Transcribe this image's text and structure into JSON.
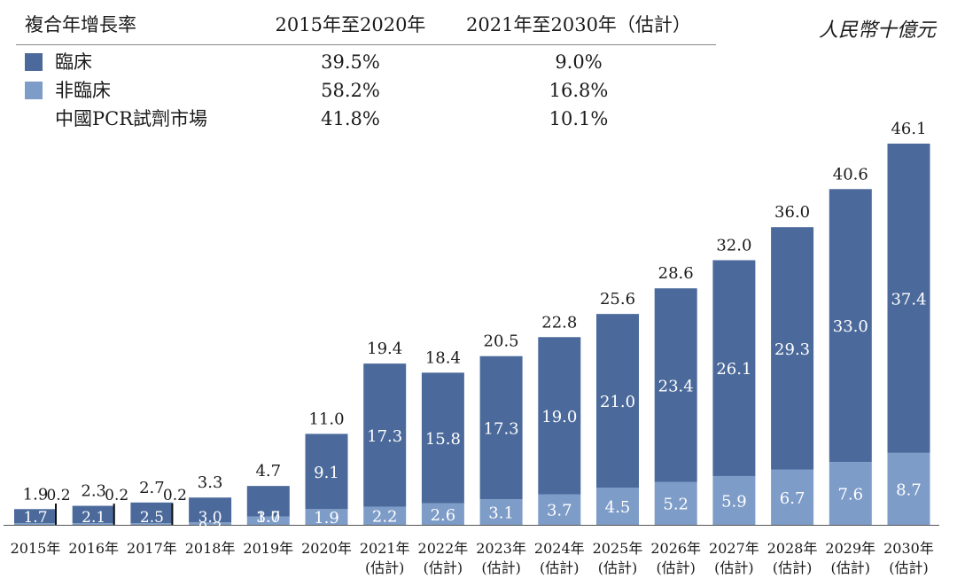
{
  "legend_table": {
    "header": {
      "label": "複合年增長率",
      "period1": "2015年至2020年",
      "period2": "2021年至2030年（估計）"
    },
    "rows": [
      {
        "label": "臨床",
        "color": "#4b6a9b",
        "period1": "39.5%",
        "period2": "9.0%"
      },
      {
        "label": "非臨床",
        "color": "#7e9cc8",
        "period1": "58.2%",
        "period2": "16.8%"
      },
      {
        "label": "中國PCR試劑市場",
        "color": "",
        "period1": "41.8%",
        "period2": "10.1%"
      }
    ]
  },
  "unit": "人民幣十億元",
  "chart_data": {
    "type": "bar",
    "stacked": true,
    "categories": [
      "2015年",
      "2016年",
      "2017年",
      "2018年",
      "2019年",
      "2020年",
      "2021年\n(估計)",
      "2022年\n(估計)",
      "2023年\n(估計)",
      "2024年\n(估計)",
      "2025年\n(估計)",
      "2026年\n(估計)",
      "2027年\n(估計)",
      "2028年\n(估計)",
      "2029年\n(估計)",
      "2030年\n(估計)"
    ],
    "series": [
      {
        "name": "非臨床",
        "color": "#7e9cc8",
        "values": [
          0.2,
          0.2,
          0.2,
          0.3,
          1.0,
          1.9,
          2.2,
          2.6,
          3.1,
          3.7,
          4.5,
          5.2,
          5.9,
          6.7,
          7.6,
          8.7
        ]
      },
      {
        "name": "臨床",
        "color": "#4b6a9b",
        "values": [
          1.7,
          2.1,
          2.5,
          3.0,
          3.7,
          9.1,
          17.3,
          15.8,
          17.3,
          19.0,
          21.0,
          23.4,
          26.1,
          29.3,
          33.0,
          37.4
        ]
      }
    ],
    "totals": [
      1.9,
      2.3,
      2.7,
      3.3,
      4.7,
      11.0,
      19.4,
      18.4,
      20.5,
      22.8,
      25.6,
      28.6,
      32.0,
      36.0,
      40.6,
      46.1
    ],
    "ylim": [
      0,
      46.1
    ],
    "title": "",
    "xlabel": "",
    "ylabel": "",
    "grid": false
  }
}
